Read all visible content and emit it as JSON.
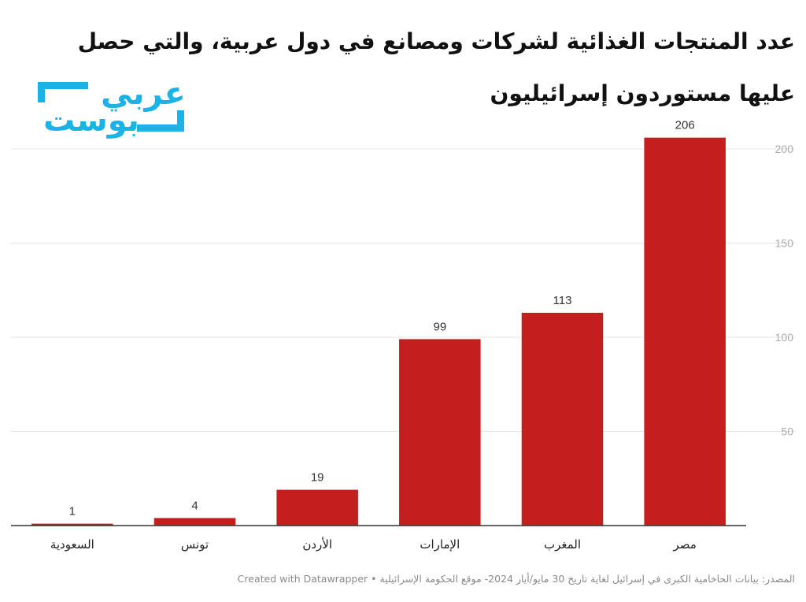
{
  "title": "عدد المنتجات الغذائية لشركات ومصانع في دول عربية، والتي حصل عليها مستوردون إسرائيليون",
  "logo": {
    "text": "عربي بوست",
    "line1": "عربي",
    "line2": "بوست",
    "color": "#1bb3e6"
  },
  "footer": {
    "source": "المصدر: بيانات الحاخامية الكبرى في إسرائيل لغاية تاريخ 30 مايو/أيار 2024- موقع الحكومة الإسرائيلية",
    "separator": "•",
    "credit": "Created with Datawrapper"
  },
  "colors": {
    "bar": "#c41e1e",
    "grid": "#e6e6e6",
    "axis": "#333333",
    "tick_label": "#aaaaaa"
  },
  "chart_data": {
    "type": "bar",
    "categories": [
      "السعودية",
      "تونس",
      "الأردن",
      "الإمارات",
      "المغرب",
      "مصر"
    ],
    "values": [
      1,
      4,
      19,
      99,
      113,
      206
    ],
    "value_labels": [
      "1",
      "4",
      "19",
      "99",
      "113",
      "206"
    ],
    "ylim": [
      0,
      212
    ],
    "yticks": [
      50,
      100,
      150,
      200
    ],
    "ytick_labels": [
      "50",
      "100",
      "150",
      "200"
    ],
    "xlabel": "",
    "ylabel": "",
    "grid": true,
    "y_axis_side": "right"
  }
}
